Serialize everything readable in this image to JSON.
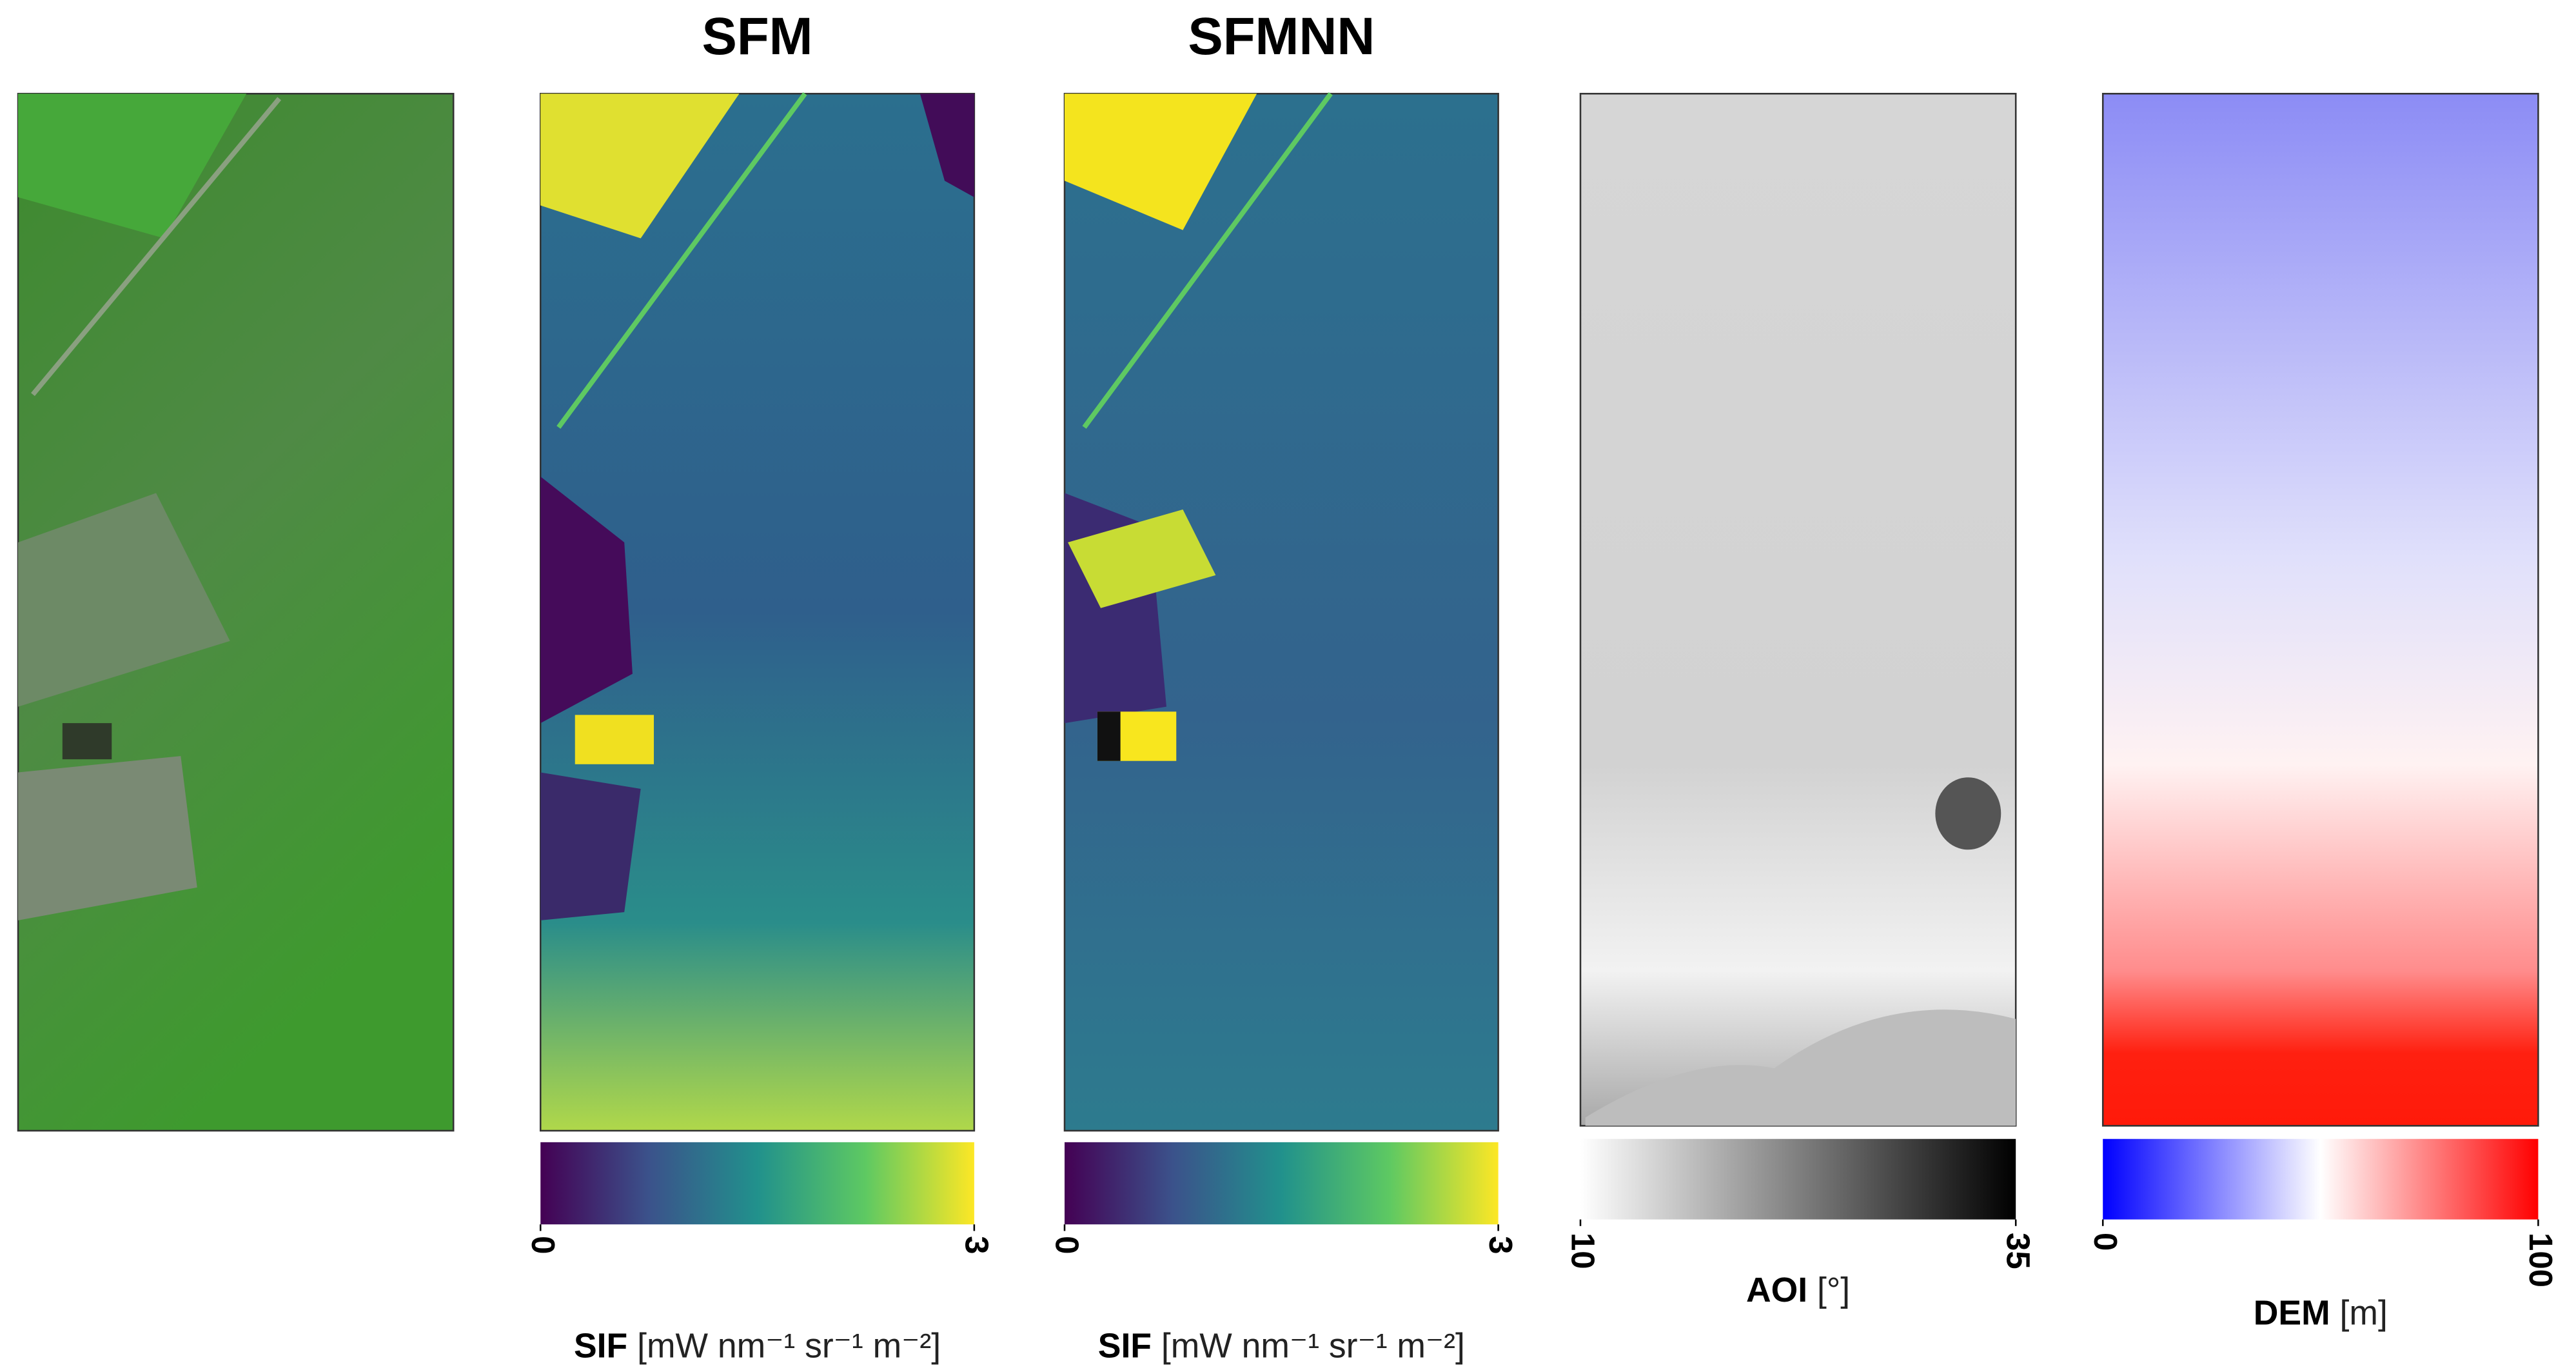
{
  "titles": [
    "SFM",
    "SFMNN"
  ],
  "colorbars": [
    {
      "label": "SIF",
      "unit": "[mW nm⁻¹ sr⁻¹ m⁻²]",
      "colormap": "viridis",
      "range": [
        0,
        3
      ],
      "ticks": [
        0,
        3
      ]
    },
    {
      "label": "SIF",
      "unit": "[mW nm⁻¹ sr⁻¹ m⁻²]",
      "colormap": "viridis",
      "range": [
        0,
        3
      ],
      "ticks": [
        0,
        3
      ]
    },
    {
      "label": "AOI",
      "unit": "[°]",
      "colormap": "gray_r",
      "range": [
        10,
        35
      ],
      "ticks": [
        10,
        35
      ]
    },
    {
      "label": "DEM",
      "unit": "[m]",
      "colormap": "bwr",
      "range": [
        0,
        100
      ],
      "ticks": [
        0,
        100
      ]
    }
  ]
}
